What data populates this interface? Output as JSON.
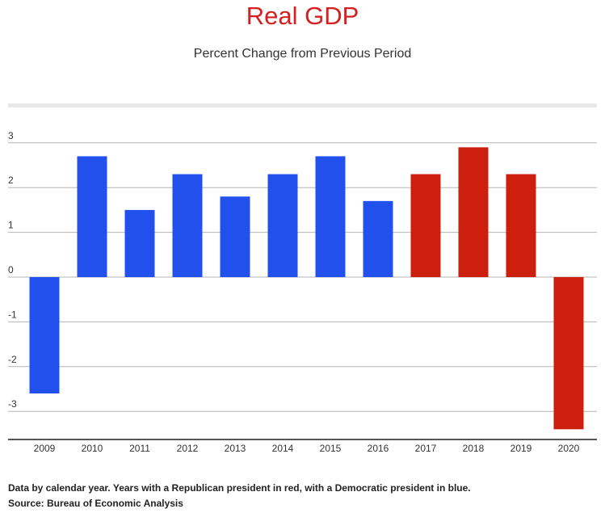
{
  "chart_data": {
    "type": "bar",
    "title": "Real GDP",
    "subtitle": "Percent Change from Previous Period",
    "xlabel": "",
    "ylabel": "",
    "categories": [
      "2009",
      "2010",
      "2011",
      "2012",
      "2013",
      "2014",
      "2015",
      "2016",
      "2017",
      "2018",
      "2019",
      "2020"
    ],
    "values": [
      -2.6,
      2.7,
      1.5,
      2.3,
      1.8,
      2.3,
      2.7,
      1.7,
      2.3,
      2.9,
      2.3,
      -3.4
    ],
    "party": [
      "D",
      "D",
      "D",
      "D",
      "D",
      "D",
      "D",
      "D",
      "R",
      "R",
      "R",
      "R"
    ],
    "colors": {
      "D": "#2250ec",
      "R": "#cc1f0e"
    },
    "ylim": [
      -3.6,
      3.3
    ],
    "yticks": [
      3,
      2,
      1,
      0,
      -1,
      -2,
      -3
    ],
    "ytick_labels": [
      "3",
      "2",
      "1",
      "0",
      "-1",
      "-2",
      "-3"
    ],
    "grid": true,
    "legend": "none"
  },
  "footnotes": {
    "note": "Data by calendar year. Years with a Republican president in red, with a Democratic president in blue.",
    "source": "Source: Bureau of Economic Analysis"
  }
}
